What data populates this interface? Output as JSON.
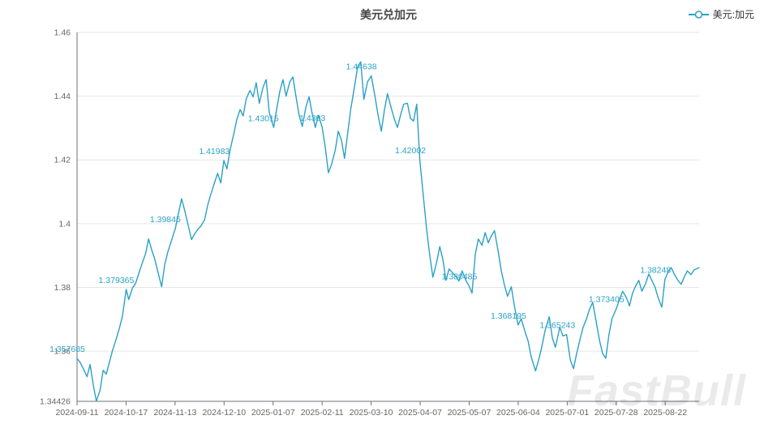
{
  "header": {
    "title": "美元兑加元"
  },
  "legend": {
    "label": "美元:加元",
    "color": "#2aa1c6"
  },
  "watermark": "FastBull",
  "chart_data": {
    "type": "line",
    "title": "美元兑加元",
    "series_name": "美元:加元",
    "line_color": "#2aa1c6",
    "label_color": "#2aa1c6",
    "grid_color": "#e6e6e6",
    "axis_color": "#6e7079",
    "tick_text_color": "#666666",
    "legend_position": "top-right",
    "grid": true,
    "y_axis": {
      "min": 1.34426,
      "max": 1.46,
      "ticks": [
        {
          "label": "1.46",
          "value": 1.46
        },
        {
          "label": "1.44",
          "value": 1.44
        },
        {
          "label": "1.42",
          "value": 1.42
        },
        {
          "label": "1.4",
          "value": 1.4
        },
        {
          "label": "1.38",
          "value": 1.38
        },
        {
          "label": "1.36",
          "value": 1.36
        },
        {
          "label": "1.34426",
          "value": 1.34426
        }
      ]
    },
    "x_ticks": [
      "2024-09-11",
      "2024-10-17",
      "2024-11-13",
      "2024-12-10",
      "2025-01-07",
      "2025-02-11",
      "2025-03-10",
      "2025-04-07",
      "2025-05-07",
      "2025-06-04",
      "2025-07-01",
      "2025-07-28",
      "2025-08-22"
    ],
    "labeled_points": [
      {
        "date": "2024-09-11",
        "label": "1.357685",
        "value": 1.357685
      },
      {
        "date": "2024-10-17",
        "label": "1.379365",
        "value": 1.379365
      },
      {
        "date": "2024-11-13",
        "label": "1.39845",
        "value": 1.39845
      },
      {
        "date": "2024-12-10",
        "label": "1.41983",
        "value": 1.41983
      },
      {
        "date": "2025-01-07",
        "label": "1.43015",
        "value": 1.43015
      },
      {
        "date": "2025-02-11",
        "label": "1.4303",
        "value": 1.4303
      },
      {
        "date": "2025-03-10",
        "label": "1.44638",
        "value": 1.44638
      },
      {
        "date": "2025-04-07",
        "label": "1.42002",
        "value": 1.42002
      },
      {
        "date": "2025-05-07",
        "label": "1.380485",
        "value": 1.380485
      },
      {
        "date": "2025-06-04",
        "label": "1.368195",
        "value": 1.368195
      },
      {
        "date": "2025-07-01",
        "label": "1.365243",
        "value": 1.365243
      },
      {
        "date": "2025-07-28",
        "label": "1.373405",
        "value": 1.373405
      },
      {
        "date": "2025-08-22",
        "label": "1.38248",
        "value": 1.38248
      }
    ],
    "path": [
      [
        0.0,
        1.3577
      ],
      [
        0.005,
        1.3565
      ],
      [
        0.01,
        1.3545
      ],
      [
        0.016,
        1.352
      ],
      [
        0.021,
        1.3558
      ],
      [
        0.026,
        1.3495
      ],
      [
        0.031,
        1.3443
      ],
      [
        0.037,
        1.3478
      ],
      [
        0.042,
        1.354
      ],
      [
        0.047,
        1.3528
      ],
      [
        0.052,
        1.3565
      ],
      [
        0.057,
        1.3602
      ],
      [
        0.063,
        1.3638
      ],
      [
        0.068,
        1.3672
      ],
      [
        0.073,
        1.371
      ],
      [
        0.079,
        1.3794
      ],
      [
        0.083,
        1.3762
      ],
      [
        0.089,
        1.3798
      ],
      [
        0.094,
        1.3812
      ],
      [
        0.099,
        1.3842
      ],
      [
        0.104,
        1.3872
      ],
      [
        0.11,
        1.3905
      ],
      [
        0.115,
        1.3952
      ],
      [
        0.12,
        1.3918
      ],
      [
        0.125,
        1.3888
      ],
      [
        0.13,
        1.3848
      ],
      [
        0.136,
        1.3802
      ],
      [
        0.141,
        1.3872
      ],
      [
        0.146,
        1.3912
      ],
      [
        0.151,
        1.3942
      ],
      [
        0.158,
        1.3985
      ],
      [
        0.163,
        1.4032
      ],
      [
        0.168,
        1.4078
      ],
      [
        0.173,
        1.4042
      ],
      [
        0.179,
        1.3992
      ],
      [
        0.184,
        1.395
      ],
      [
        0.189,
        1.3968
      ],
      [
        0.194,
        1.3982
      ],
      [
        0.199,
        1.3992
      ],
      [
        0.205,
        1.4012
      ],
      [
        0.21,
        1.4058
      ],
      [
        0.215,
        1.4092
      ],
      [
        0.22,
        1.4122
      ],
      [
        0.226,
        1.4158
      ],
      [
        0.231,
        1.4128
      ],
      [
        0.236,
        1.4198
      ],
      [
        0.241,
        1.4172
      ],
      [
        0.246,
        1.4232
      ],
      [
        0.252,
        1.4282
      ],
      [
        0.257,
        1.4328
      ],
      [
        0.262,
        1.4358
      ],
      [
        0.267,
        1.4338
      ],
      [
        0.272,
        1.4392
      ],
      [
        0.278,
        1.4418
      ],
      [
        0.283,
        1.4398
      ],
      [
        0.288,
        1.4442
      ],
      [
        0.293,
        1.4378
      ],
      [
        0.299,
        1.4428
      ],
      [
        0.304,
        1.4452
      ],
      [
        0.309,
        1.4348
      ],
      [
        0.316,
        1.4302
      ],
      [
        0.321,
        1.436
      ],
      [
        0.326,
        1.4415
      ],
      [
        0.331,
        1.4452
      ],
      [
        0.336,
        1.44
      ],
      [
        0.342,
        1.4445
      ],
      [
        0.347,
        1.446
      ],
      [
        0.352,
        1.4398
      ],
      [
        0.357,
        1.434
      ],
      [
        0.362,
        1.4305
      ],
      [
        0.368,
        1.4368
      ],
      [
        0.373,
        1.4398
      ],
      [
        0.378,
        1.4345
      ],
      [
        0.383,
        1.4302
      ],
      [
        0.388,
        1.434
      ],
      [
        0.394,
        1.4303
      ],
      [
        0.399,
        1.424
      ],
      [
        0.404,
        1.416
      ],
      [
        0.409,
        1.4185
      ],
      [
        0.415,
        1.423
      ],
      [
        0.42,
        1.429
      ],
      [
        0.425,
        1.4262
      ],
      [
        0.43,
        1.4205
      ],
      [
        0.435,
        1.4282
      ],
      [
        0.44,
        1.436
      ],
      [
        0.446,
        1.443
      ],
      [
        0.451,
        1.4492
      ],
      [
        0.456,
        1.4508
      ],
      [
        0.461,
        1.439
      ],
      [
        0.467,
        1.4445
      ],
      [
        0.473,
        1.4464
      ],
      [
        0.478,
        1.441
      ],
      [
        0.484,
        1.434
      ],
      [
        0.489,
        1.429
      ],
      [
        0.494,
        1.4355
      ],
      [
        0.499,
        1.4408
      ],
      [
        0.504,
        1.437
      ],
      [
        0.51,
        1.4328
      ],
      [
        0.515,
        1.4302
      ],
      [
        0.52,
        1.434
      ],
      [
        0.525,
        1.4375
      ],
      [
        0.531,
        1.4378
      ],
      [
        0.536,
        1.433
      ],
      [
        0.541,
        1.4322
      ],
      [
        0.546,
        1.4375
      ],
      [
        0.551,
        1.42
      ],
      [
        0.557,
        1.408
      ],
      [
        0.562,
        1.398
      ],
      [
        0.567,
        1.39
      ],
      [
        0.572,
        1.3832
      ],
      [
        0.578,
        1.3878
      ],
      [
        0.583,
        1.3928
      ],
      [
        0.588,
        1.3888
      ],
      [
        0.593,
        1.3822
      ],
      [
        0.598,
        1.3858
      ],
      [
        0.604,
        1.3845
      ],
      [
        0.609,
        1.3835
      ],
      [
        0.614,
        1.382
      ],
      [
        0.619,
        1.3852
      ],
      [
        0.625,
        1.3822
      ],
      [
        0.63,
        1.3805
      ],
      [
        0.635,
        1.3782
      ],
      [
        0.64,
        1.3902
      ],
      [
        0.645,
        1.3952
      ],
      [
        0.651,
        1.3932
      ],
      [
        0.656,
        1.3972
      ],
      [
        0.661,
        1.394
      ],
      [
        0.666,
        1.3962
      ],
      [
        0.671,
        1.3978
      ],
      [
        0.677,
        1.3912
      ],
      [
        0.682,
        1.3852
      ],
      [
        0.687,
        1.3808
      ],
      [
        0.692,
        1.3772
      ],
      [
        0.698,
        1.3802
      ],
      [
        0.703,
        1.3742
      ],
      [
        0.709,
        1.3682
      ],
      [
        0.714,
        1.3702
      ],
      [
        0.72,
        1.3662
      ],
      [
        0.725,
        1.3632
      ],
      [
        0.73,
        1.3582
      ],
      [
        0.737,
        1.3538
      ],
      [
        0.742,
        1.3572
      ],
      [
        0.747,
        1.3612
      ],
      [
        0.752,
        1.3662
      ],
      [
        0.759,
        1.3708
      ],
      [
        0.764,
        1.3642
      ],
      [
        0.769,
        1.3612
      ],
      [
        0.776,
        1.3675
      ],
      [
        0.781,
        1.3648
      ],
      [
        0.787,
        1.3652
      ],
      [
        0.793,
        1.3572
      ],
      [
        0.798,
        1.3545
      ],
      [
        0.803,
        1.3592
      ],
      [
        0.808,
        1.3632
      ],
      [
        0.813,
        1.3672
      ],
      [
        0.819,
        1.3702
      ],
      [
        0.824,
        1.3732
      ],
      [
        0.829,
        1.3753
      ],
      [
        0.834,
        1.3698
      ],
      [
        0.84,
        1.3632
      ],
      [
        0.845,
        1.3592
      ],
      [
        0.85,
        1.3578
      ],
      [
        0.855,
        1.3652
      ],
      [
        0.86,
        1.3702
      ],
      [
        0.867,
        1.3734
      ],
      [
        0.872,
        1.3762
      ],
      [
        0.877,
        1.3788
      ],
      [
        0.883,
        1.3768
      ],
      [
        0.888,
        1.3742
      ],
      [
        0.893,
        1.3782
      ],
      [
        0.898,
        1.3805
      ],
      [
        0.903,
        1.3822
      ],
      [
        0.908,
        1.3788
      ],
      [
        0.914,
        1.3812
      ],
      [
        0.919,
        1.3842
      ],
      [
        0.924,
        1.3822
      ],
      [
        0.929,
        1.3802
      ],
      [
        0.934,
        1.3768
      ],
      [
        0.94,
        1.3738
      ],
      [
        0.945,
        1.3825
      ],
      [
        0.95,
        1.3848
      ],
      [
        0.955,
        1.3862
      ],
      [
        0.961,
        1.3838
      ],
      [
        0.966,
        1.3822
      ],
      [
        0.971,
        1.381
      ],
      [
        0.976,
        1.3832
      ],
      [
        0.981,
        1.3852
      ],
      [
        0.987,
        1.384
      ],
      [
        0.992,
        1.3855
      ],
      [
        1.0,
        1.3862
      ]
    ]
  }
}
